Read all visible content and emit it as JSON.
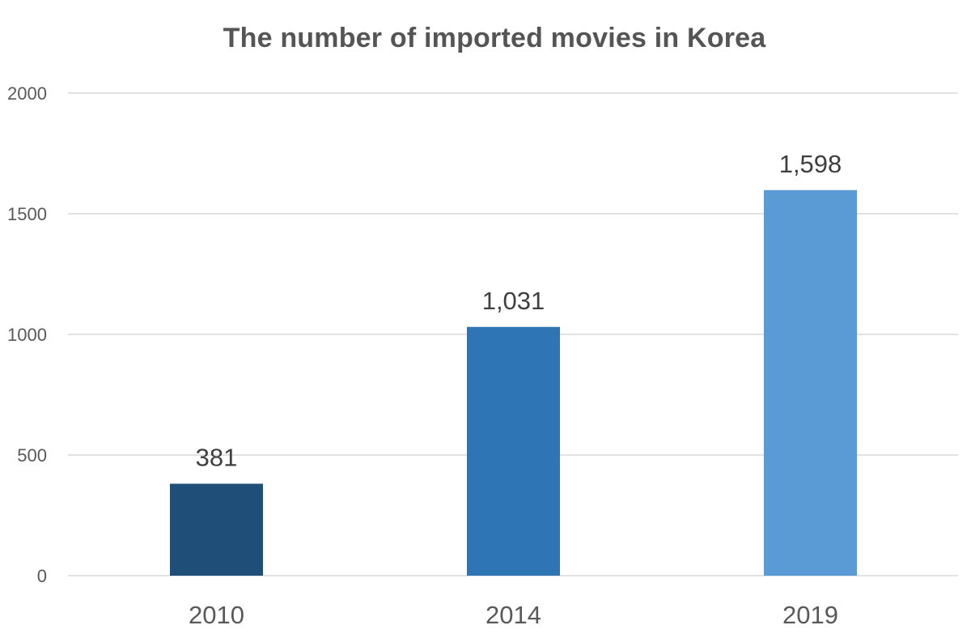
{
  "chart_data": {
    "type": "bar",
    "title": "The number of imported movies in Korea",
    "categories": [
      "2010",
      "2014",
      "2019"
    ],
    "values": [
      381,
      1031,
      1598
    ],
    "data_labels": [
      "381",
      "1,031",
      "1,598"
    ],
    "bar_colors": [
      "#1f4e79",
      "#2e75b6",
      "#5b9bd5"
    ],
    "ylim": [
      0,
      2000
    ],
    "yticks": [
      0,
      500,
      1000,
      1500,
      2000
    ],
    "ytick_labels": [
      "0",
      "500",
      "1000",
      "1500",
      "2000"
    ],
    "xlabel": "",
    "ylabel": "",
    "grid": true,
    "legend": "none"
  },
  "colors": {
    "gridline": "#d9d9d9",
    "title": "#555555",
    "axis_text": "#595959",
    "data_label": "#404040"
  }
}
